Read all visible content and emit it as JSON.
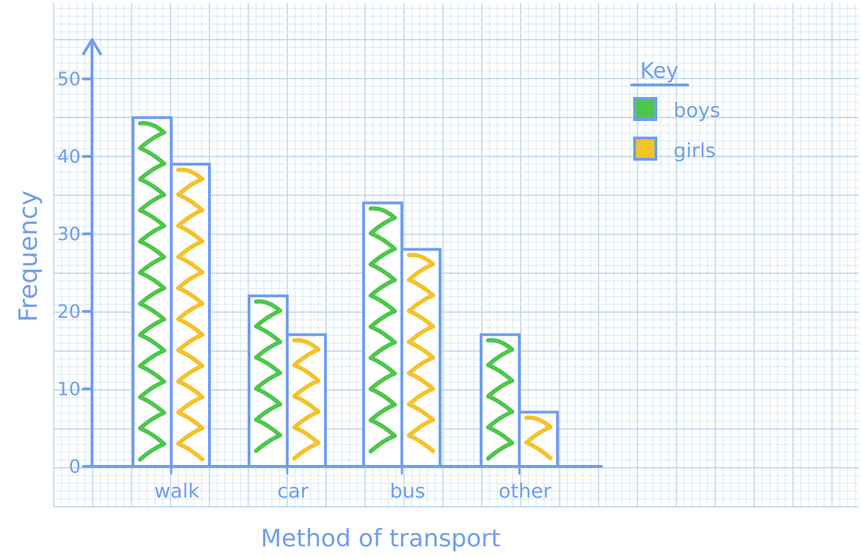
{
  "chart_data": {
    "type": "bar",
    "title": "",
    "xlabel": "Method of transport",
    "ylabel": "Frequency",
    "categories": [
      "walk",
      "car",
      "bus",
      "other"
    ],
    "series": [
      {
        "name": "boys",
        "values": [
          45,
          22,
          34,
          17
        ],
        "color": "#4cc74c"
      },
      {
        "name": "girls",
        "values": [
          39,
          17,
          28,
          7
        ],
        "color": "#f5c22a"
      }
    ],
    "ylim": [
      0,
      50
    ],
    "yticks": [
      0,
      10,
      20,
      30,
      40,
      50
    ],
    "grid": true,
    "legend": {
      "title": "Key",
      "position": "top-right"
    }
  },
  "colors": {
    "ink": "#6f9ef0",
    "grid_minor": "#d2e6f7",
    "grid_major": "#b3d2ef"
  }
}
